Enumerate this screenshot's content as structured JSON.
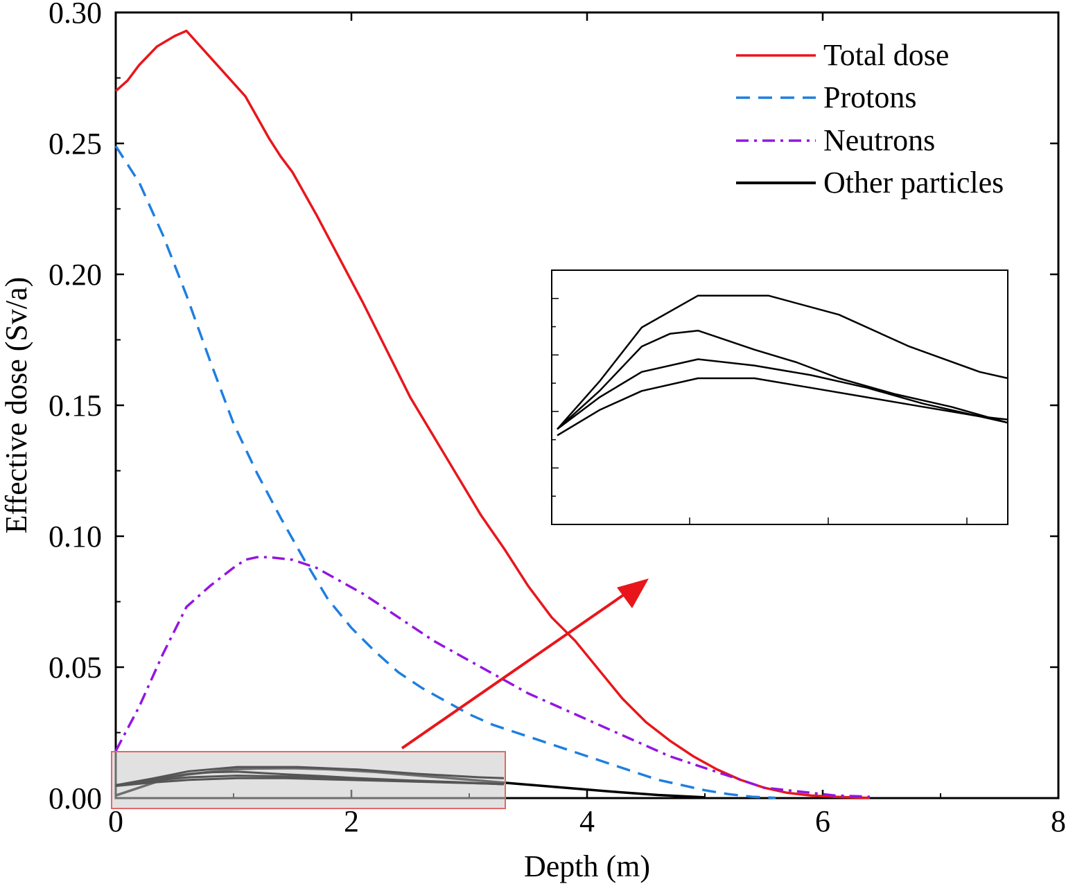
{
  "chart_data": {
    "type": "line",
    "title": "",
    "xlabel": "Depth (m)",
    "ylabel": "Effective dose (Sv/a)",
    "xlim": [
      0,
      8
    ],
    "ylim": [
      0,
      0.3
    ],
    "x_ticks": [
      0,
      2,
      4,
      6,
      8
    ],
    "x_tick_labels": [
      "0",
      "2",
      "4",
      "6",
      "8"
    ],
    "y_ticks": [
      0,
      0.05,
      0.1,
      0.15,
      0.2,
      0.25,
      0.3
    ],
    "y_tick_labels": [
      "0.00",
      "0.05",
      "0.10",
      "0.15",
      "0.20",
      "0.25",
      "0.30"
    ],
    "legend_position": "top-right",
    "series": [
      {
        "name": "Total dose",
        "color": "#e8161b",
        "style": "solid",
        "x": [
          0,
          0.1,
          0.2,
          0.35,
          0.5,
          0.6,
          0.7,
          0.9,
          1.1,
          1.3,
          1.4,
          1.5,
          1.7,
          1.9,
          2.1,
          2.3,
          2.5,
          2.7,
          2.9,
          3.1,
          3.3,
          3.5,
          3.7,
          3.9,
          4.1,
          4.3,
          4.5,
          4.7,
          4.9,
          5.1,
          5.3,
          5.5,
          5.7,
          5.9,
          6.1,
          6.3,
          6.4
        ],
        "y": [
          0.27,
          0.274,
          0.28,
          0.287,
          0.291,
          0.293,
          0.288,
          0.278,
          0.268,
          0.252,
          0.245,
          0.239,
          0.223,
          0.206,
          0.189,
          0.171,
          0.153,
          0.138,
          0.123,
          0.108,
          0.095,
          0.081,
          0.069,
          0.06,
          0.049,
          0.038,
          0.029,
          0.022,
          0.016,
          0.011,
          0.007,
          0.004,
          0.002,
          0.001,
          0.0005,
          0.0002,
          0.0001
        ]
      },
      {
        "name": "Protons",
        "color": "#1e7fe0",
        "style": "dashed",
        "x": [
          0,
          0.2,
          0.4,
          0.6,
          0.8,
          1.0,
          1.2,
          1.4,
          1.6,
          1.8,
          2.0,
          2.2,
          2.4,
          2.6,
          2.8,
          3.0,
          3.2,
          3.4,
          3.6,
          3.8,
          4.0,
          4.2,
          4.4,
          4.6,
          4.8,
          5.0,
          5.2,
          5.4,
          5.6
        ],
        "y": [
          0.249,
          0.235,
          0.215,
          0.192,
          0.167,
          0.143,
          0.124,
          0.107,
          0.091,
          0.076,
          0.065,
          0.056,
          0.048,
          0.042,
          0.037,
          0.032,
          0.028,
          0.025,
          0.022,
          0.019,
          0.016,
          0.013,
          0.01,
          0.007,
          0.005,
          0.003,
          0.0015,
          0.0005,
          0.0001
        ]
      },
      {
        "name": "Neutrons",
        "color": "#9415e0",
        "style": "dashdot",
        "x": [
          0,
          0.2,
          0.4,
          0.6,
          0.8,
          1.0,
          1.1,
          1.2,
          1.3,
          1.5,
          1.7,
          1.9,
          2.1,
          2.3,
          2.5,
          2.7,
          2.9,
          3.1,
          3.3,
          3.5,
          3.7,
          3.9,
          4.1,
          4.3,
          4.5,
          4.7,
          4.9,
          5.1,
          5.3,
          5.5,
          5.7,
          5.9,
          6.1,
          6.3,
          6.4
        ],
        "y": [
          0.018,
          0.035,
          0.055,
          0.073,
          0.081,
          0.088,
          0.091,
          0.092,
          0.092,
          0.091,
          0.088,
          0.083,
          0.078,
          0.072,
          0.066,
          0.06,
          0.055,
          0.05,
          0.045,
          0.04,
          0.036,
          0.032,
          0.028,
          0.024,
          0.02,
          0.016,
          0.013,
          0.01,
          0.007,
          0.004,
          0.003,
          0.002,
          0.001,
          0.0007,
          0.0005
        ]
      },
      {
        "name": "Other particles",
        "color": "#000000",
        "style": "solid",
        "x": [
          0,
          0.2,
          0.4,
          0.6,
          0.8,
          1.0,
          1.2,
          1.5,
          1.8,
          2.2,
          2.6,
          3.0,
          3.4,
          3.8,
          4.2,
          4.6,
          5.0
        ],
        "y": [
          0.001,
          0.004,
          0.007,
          0.009,
          0.01,
          0.011,
          0.0113,
          0.0114,
          0.011,
          0.01,
          0.0085,
          0.007,
          0.0055,
          0.004,
          0.0025,
          0.0012,
          0.0003
        ]
      }
    ],
    "inset": {
      "note": "zoomed view of the low-dose region",
      "curves": [
        {
          "x": [
            0,
            0.3,
            0.6,
            0.8,
            1.0,
            1.2,
            1.4,
            1.7,
            2.0,
            2.4,
            2.8,
            3.2
          ],
          "y": [
            0.3,
            0.42,
            0.56,
            0.6,
            0.61,
            0.58,
            0.55,
            0.51,
            0.46,
            0.41,
            0.37,
            0.32
          ]
        },
        {
          "x": [
            0,
            0.3,
            0.6,
            1.0,
            1.5,
            2.0,
            2.5,
            3.0,
            3.2
          ],
          "y": [
            0.3,
            0.45,
            0.62,
            0.72,
            0.72,
            0.66,
            0.56,
            0.48,
            0.46
          ]
        },
        {
          "x": [
            0,
            0.3,
            0.6,
            1.0,
            1.4,
            1.8,
            2.2,
            2.6,
            3.0,
            3.2
          ],
          "y": [
            0.28,
            0.36,
            0.42,
            0.46,
            0.46,
            0.43,
            0.4,
            0.37,
            0.34,
            0.33
          ]
        },
        {
          "x": [
            0,
            0.3,
            0.6,
            1.0,
            1.4,
            1.8,
            2.2,
            2.6,
            3.0,
            3.2
          ],
          "y": [
            0.3,
            0.4,
            0.48,
            0.52,
            0.5,
            0.47,
            0.43,
            0.38,
            0.34,
            0.32
          ]
        }
      ]
    }
  }
}
